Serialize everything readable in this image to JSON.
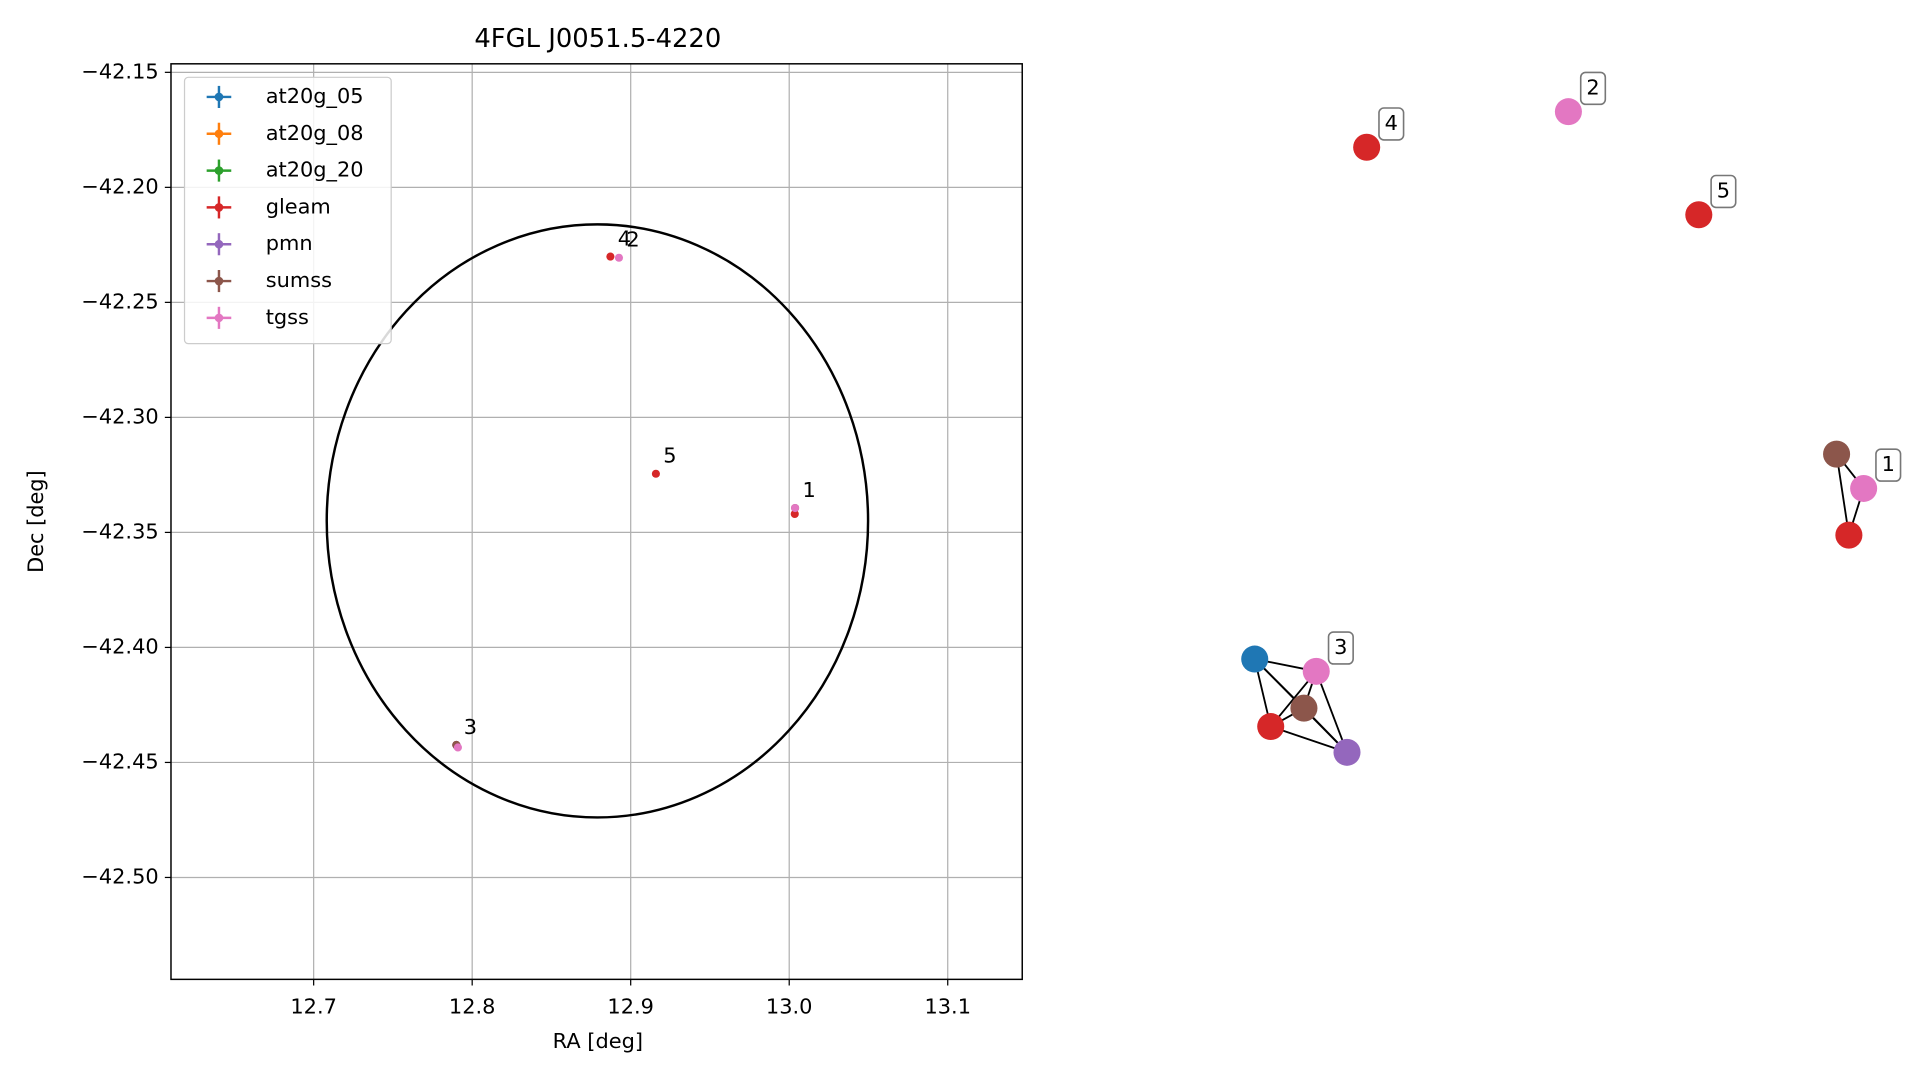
{
  "chart_data": [
    {
      "type": "scatter",
      "title": "4FGL J0051.5-4220",
      "x_label": "RA [deg]",
      "y_label": "Dec [deg]",
      "xlim": [
        12.61,
        13.147
      ],
      "ylim": [
        -42.5443,
        -42.1463
      ],
      "xticks": [
        12.7,
        12.8,
        12.9,
        {
          "value": 13,
          "label": "13.0"
        },
        13.1
      ],
      "yticks": [
        {
          "value": -42.15,
          "label": "−42.15"
        },
        {
          "value": -42.2,
          "label": "−42.20"
        },
        {
          "value": -42.25,
          "label": "−42.25"
        },
        {
          "value": -42.3,
          "label": "−42.30"
        },
        {
          "value": -42.35,
          "label": "−42.35"
        },
        {
          "value": -42.4,
          "label": "−42.40"
        },
        {
          "value": -42.45,
          "label": "−42.45"
        },
        {
          "value": -42.5,
          "label": "−42.50"
        }
      ],
      "grid": true,
      "legend": "upper left",
      "series": [
        {
          "name": "at20g_05",
          "color": "#1f77b4",
          "x": [
            12.79
          ],
          "y": [
            -42.4424
          ]
        },
        {
          "name": "at20g_08",
          "color": "#ff7f0e",
          "x": [],
          "y": []
        },
        {
          "name": "at20g_20",
          "color": "#2ca02c",
          "x": [],
          "y": []
        },
        {
          "name": "gleam",
          "color": "#d62728",
          "x": [
            13.0035,
            12.79,
            12.8872,
            12.9159
          ],
          "y": [
            -42.342,
            -42.4424,
            -42.2301,
            -42.3245
          ]
        },
        {
          "name": "pmn",
          "color": "#9467bd",
          "x": [
            12.7905
          ],
          "y": [
            -42.443
          ]
        },
        {
          "name": "sumss",
          "color": "#8c564b",
          "x": [
            13.0037,
            12.79
          ],
          "y": [
            -42.3394,
            -42.4424
          ]
        },
        {
          "name": "tgss",
          "color": "#e377c2",
          "x": [
            13.0037,
            12.8926,
            12.791
          ],
          "y": [
            -42.3394,
            -42.2306,
            -42.4435
          ]
        }
      ],
      "region": {
        "center": [
          12.879,
          -42.345
        ],
        "width": 0.3415,
        "height": 0.2578
      },
      "annotations": [
        {
          "text": "1",
          "x": 13.0037,
          "y": -42.3394
        },
        {
          "text": "2",
          "x": 12.8926,
          "y": -42.2306
        },
        {
          "text": "3",
          "x": 12.79,
          "y": -42.4424
        },
        {
          "text": "4",
          "x": 12.8872,
          "y": -42.2301
        },
        {
          "text": "5",
          "x": 12.9159,
          "y": -42.3245
        }
      ]
    },
    {
      "type": "network",
      "nodes": [
        {
          "color": "#e377c2",
          "label": "2"
        },
        {
          "color": "#d62728",
          "label": "4"
        },
        {
          "color": "#d62728",
          "label": "5"
        },
        {
          "color": "#8c564b"
        },
        {
          "color": "#e377c2",
          "label": "1"
        },
        {
          "color": "#d62728"
        },
        {
          "color": "#1f77b4"
        },
        {
          "color": "#e377c2",
          "label": "3"
        },
        {
          "color": "#8c564b"
        },
        {
          "color": "#d62728"
        },
        {
          "color": "#9467bd"
        }
      ]
    }
  ]
}
